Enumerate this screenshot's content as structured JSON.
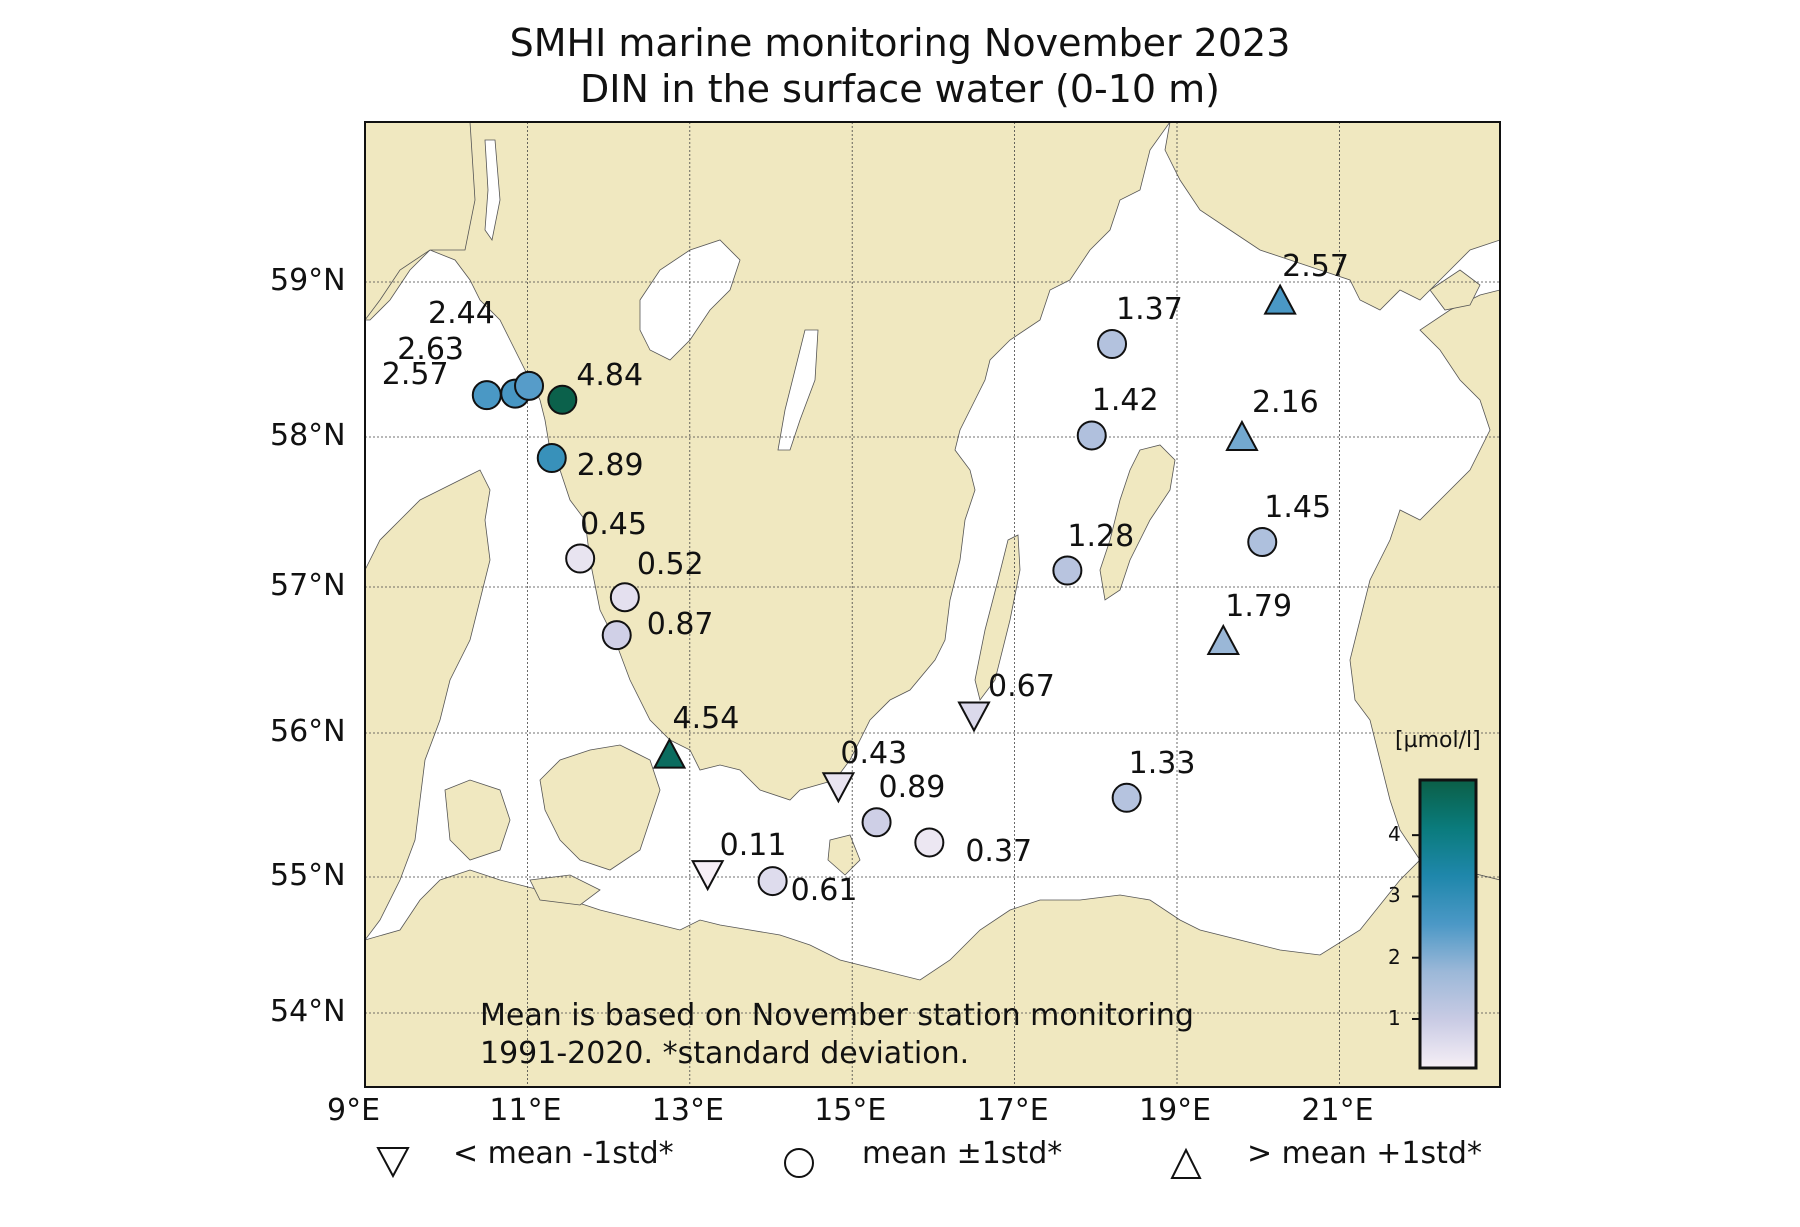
{
  "title": {
    "line1": "SMHI marine monitoring November 2023",
    "line2": "DIN in the surface water (0-10 m)"
  },
  "axes": {
    "lat_ticks": [
      {
        "label": "59°N",
        "value": 59
      },
      {
        "label": "58°N",
        "value": 58
      },
      {
        "label": "57°N",
        "value": 57
      },
      {
        "label": "56°N",
        "value": 56
      },
      {
        "label": "55°N",
        "value": 55
      },
      {
        "label": "54°N",
        "value": 54
      }
    ],
    "lon_ticks": [
      {
        "label": "9°E",
        "value": 9
      },
      {
        "label": "11°E",
        "value": 11
      },
      {
        "label": "13°E",
        "value": 13
      },
      {
        "label": "15°E",
        "value": 15
      },
      {
        "label": "17°E",
        "value": 17
      },
      {
        "label": "19°E",
        "value": 19
      },
      {
        "label": "21°E",
        "value": 21
      }
    ],
    "lon_range": [
      9,
      23
    ],
    "lat_range": [
      53.5,
      60
    ],
    "grid": true
  },
  "stations": [
    {
      "lon": 10.5,
      "lat": 58.27,
      "value": 2.57,
      "label": "2.57",
      "category": "mean"
    },
    {
      "lon": 10.85,
      "lat": 58.28,
      "value": 2.63,
      "label": "2.63",
      "category": "mean"
    },
    {
      "lon": 11.02,
      "lat": 58.33,
      "value": 2.44,
      "label": "2.44",
      "category": "mean"
    },
    {
      "lon": 11.43,
      "lat": 58.24,
      "value": 4.84,
      "label": "4.84",
      "category": "mean"
    },
    {
      "lon": 11.3,
      "lat": 57.86,
      "value": 2.89,
      "label": "2.89",
      "category": "mean"
    },
    {
      "lon": 11.65,
      "lat": 57.19,
      "value": 0.45,
      "label": "0.45",
      "category": "mean"
    },
    {
      "lon": 12.2,
      "lat": 56.93,
      "value": 0.52,
      "label": "0.52",
      "category": "mean"
    },
    {
      "lon": 12.1,
      "lat": 56.67,
      "value": 0.87,
      "label": "0.87",
      "category": "mean"
    },
    {
      "lon": 12.75,
      "lat": 55.85,
      "value": 4.54,
      "label": "4.54",
      "category": "above"
    },
    {
      "lon": 14.83,
      "lat": 55.63,
      "value": 0.43,
      "label": "0.43",
      "category": "below"
    },
    {
      "lon": 15.3,
      "lat": 55.38,
      "value": 0.89,
      "label": "0.89",
      "category": "mean"
    },
    {
      "lon": 15.95,
      "lat": 55.24,
      "value": 0.37,
      "label": "0.37",
      "category": "mean"
    },
    {
      "lon": 13.22,
      "lat": 55.02,
      "value": 0.11,
      "label": "0.11",
      "category": "below"
    },
    {
      "lon": 14.02,
      "lat": 54.97,
      "value": 0.61,
      "label": "0.61",
      "category": "mean"
    },
    {
      "lon": 16.5,
      "lat": 56.12,
      "value": 0.67,
      "label": "0.67",
      "category": "below"
    },
    {
      "lon": 18.2,
      "lat": 58.6,
      "value": 1.37,
      "label": "1.37",
      "category": "mean"
    },
    {
      "lon": 17.95,
      "lat": 58.01,
      "value": 1.42,
      "label": "1.42",
      "category": "mean"
    },
    {
      "lon": 17.65,
      "lat": 57.11,
      "value": 1.28,
      "label": "1.28",
      "category": "mean"
    },
    {
      "lon": 18.38,
      "lat": 55.55,
      "value": 1.33,
      "label": "1.33",
      "category": "mean"
    },
    {
      "lon": 20.27,
      "lat": 58.88,
      "value": 2.57,
      "label": "2.57",
      "category": "above"
    },
    {
      "lon": 19.8,
      "lat": 58.0,
      "value": 2.16,
      "label": "2.16",
      "category": "above"
    },
    {
      "lon": 20.05,
      "lat": 57.3,
      "value": 1.45,
      "label": "1.45",
      "category": "mean"
    },
    {
      "lon": 19.57,
      "lat": 56.63,
      "value": 1.79,
      "label": "1.79",
      "category": "above"
    }
  ],
  "note": {
    "line1": "Mean is based on November station monitoring",
    "line2": "1991-2020. *standard deviation."
  },
  "legend": {
    "below_label": "< mean -1std*",
    "mean_label": "mean ±1std*",
    "above_label": "> mean +1std*"
  },
  "colorbar": {
    "unit": "[µmol/l]",
    "range": [
      0.2,
      4.9
    ],
    "ticks": [
      {
        "label": "1",
        "value": 1
      },
      {
        "label": "2",
        "value": 2
      },
      {
        "label": "3",
        "value": 3
      },
      {
        "label": "4",
        "value": 4
      }
    ],
    "colors": [
      "#f6eff6",
      "#c9cbe4",
      "#9cb8d8",
      "#4b98c6",
      "#1f87ab",
      "#0a7b7c",
      "#0b5f47"
    ]
  },
  "colors": {
    "land": "#f0e8c0",
    "water": "#ffffff",
    "grid": "#444444",
    "marker_edge": "#111111"
  }
}
